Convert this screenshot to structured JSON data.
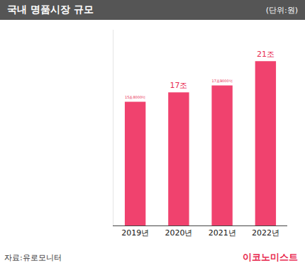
{
  "chart_data": {
    "type": "bar",
    "title": "국내 명품시장 규모",
    "subtitle": "(단위:원)",
    "source": "자료:유로모니터",
    "publisher": "이코노미스트",
    "categories": [
      "2019년",
      "2020년",
      "2021년",
      "2022년"
    ],
    "values": [
      15.8,
      17,
      17.9,
      21
    ],
    "value_labels": [
      "15조8000억",
      "17조",
      "17조9000억",
      "21조"
    ],
    "color": "#f0426e",
    "ylim": [
      0,
      25
    ],
    "grid": false,
    "data_labels": true,
    "tick_labels": "x"
  }
}
